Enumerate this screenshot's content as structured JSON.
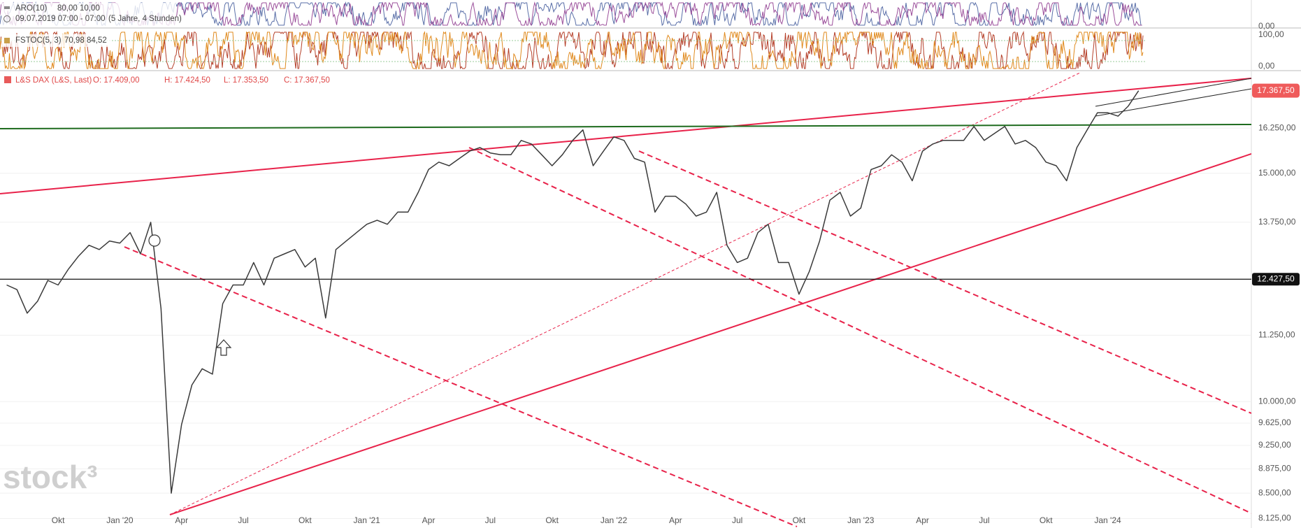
{
  "header": {
    "aro": "ARO(10)",
    "aro_values": "80,00  10,00",
    "period": "09.07.2019 07:00 - 07:00",
    "range": "(5 Jahre, 4 Stunden)",
    "fstoc": "FSTOC(5, 3)",
    "fstoc_values": "70,98  84,52",
    "indicator_axis": [
      "0,00",
      "100,00",
      "0,00"
    ]
  },
  "chart_data": {
    "type": "line",
    "title": "L&S DAX (L&S, Last)",
    "ohlc": [
      "O: 17.409,00",
      "H: 17.424,50",
      "L: 17.353,50",
      "C: 17.367,50"
    ],
    "watermark": "stock³",
    "color": "#3a3a3a",
    "log_scale": true,
    "grid": true,
    "categories": [
      null,
      null,
      null,
      null,
      null,
      "Okt",
      null,
      null,
      null,
      null,
      null,
      "Jan '20",
      null,
      null,
      null,
      null,
      null,
      "Apr",
      null,
      null,
      null,
      null,
      null,
      "Jul",
      null,
      null,
      null,
      null,
      null,
      "Okt",
      null,
      null,
      null,
      null,
      null,
      "Jan '21",
      null,
      null,
      null,
      null,
      null,
      "Apr",
      null,
      null,
      null,
      null,
      null,
      "Jul",
      null,
      null,
      null,
      null,
      null,
      "Okt",
      null,
      null,
      null,
      null,
      null,
      "Jan '22",
      null,
      null,
      null,
      null,
      null,
      "Apr",
      null,
      null,
      null,
      null,
      null,
      "Jul",
      null,
      null,
      null,
      null,
      null,
      "Okt",
      null,
      null,
      null,
      null,
      null,
      "Jan '23",
      null,
      null,
      null,
      null,
      null,
      "Apr",
      null,
      null,
      null,
      null,
      null,
      "Jul",
      null,
      null,
      null,
      null,
      null,
      "Okt",
      null,
      null,
      null,
      null,
      null,
      "Jan '24",
      null,
      null,
      null,
      null,
      null,
      null,
      null,
      null,
      null,
      null,
      null,
      null,
      null
    ],
    "values": [
      12300,
      12200,
      11700,
      11950,
      12400,
      12300,
      12650,
      12950,
      13200,
      13100,
      13300,
      13250,
      13500,
      13000,
      13750,
      11800,
      8500,
      9600,
      10300,
      10600,
      10500,
      11900,
      12300,
      12300,
      12800,
      12300,
      12900,
      13000,
      13100,
      12700,
      12900,
      11600,
      13100,
      13300,
      13500,
      13700,
      13800,
      13700,
      14000,
      14000,
      14500,
      15100,
      15300,
      15200,
      15400,
      15600,
      15700,
      15550,
      15500,
      15500,
      15900,
      15800,
      15500,
      15200,
      15500,
      15900,
      16200,
      15200,
      15600,
      16000,
      15900,
      15400,
      15300,
      14000,
      14400,
      14400,
      14200,
      13900,
      14000,
      14500,
      13200,
      12800,
      12900,
      13500,
      13700,
      12800,
      12800,
      12100,
      12600,
      13300,
      14300,
      14500,
      13900,
      14100,
      15100,
      15200,
      15500,
      15300,
      14800,
      15600,
      15800,
      15900,
      15900,
      15900,
      16300,
      15900,
      16100,
      16300,
      15800,
      15900,
      15700,
      15300,
      15200,
      14800,
      15700,
      16200,
      16700,
      16700,
      16600,
      16900,
      17367.5,
      null,
      null,
      null,
      null,
      null,
      null,
      null,
      null,
      null,
      null
    ],
    "ylim": [
      7990,
      17930
    ],
    "yticks": [
      {
        "value": 8125,
        "label": "8.125,00"
      },
      {
        "value": 8500,
        "label": "8.500,00"
      },
      {
        "value": 8875,
        "label": "8.875,00"
      },
      {
        "value": 9250,
        "label": "9.250,00"
      },
      {
        "value": 9625,
        "label": "9.625,00"
      },
      {
        "value": 10000,
        "label": "10.000,00"
      },
      {
        "value": 11250,
        "label": "11.250,00"
      },
      {
        "value": 13750,
        "label": "13.750,00"
      },
      {
        "value": 15000,
        "label": "15.000,00"
      },
      {
        "value": 16250,
        "label": "16.250,00"
      }
    ],
    "reference_line": {
      "value": 12427.5,
      "label": "12.427,50",
      "color": "#111111"
    },
    "last_price": {
      "value": 17367.5,
      "label": "17.367,50",
      "color": "#ef5b5b"
    }
  }
}
